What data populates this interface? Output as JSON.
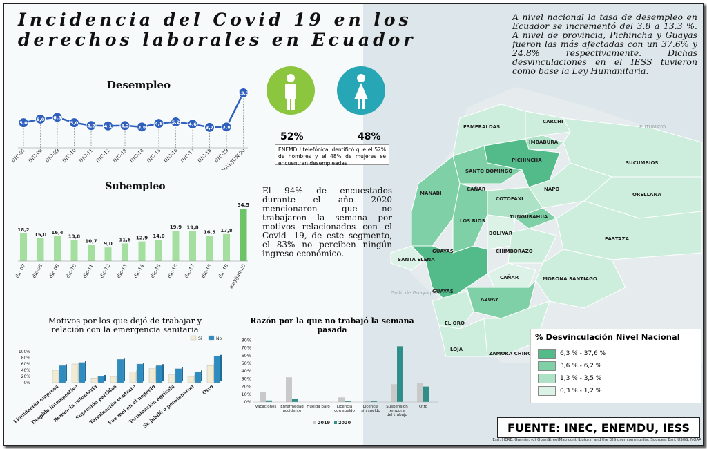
{
  "title_line1": "Incidencia del Covid 19 en los",
  "title_line2": "derechos laborales en Ecuador",
  "desempleo": {
    "title": "Desempleo",
    "chart_data": {
      "type": "line",
      "categories": [
        "DIC-07",
        "DIC-08",
        "DIC-09",
        "DIC-10",
        "DIC-11",
        "DIC-12",
        "DIC-13",
        "DIC-14",
        "DIC-15",
        "DIC-16",
        "DIC-17",
        "DIC-18",
        "DIC-19",
        "MAY/JUN-20"
      ],
      "values": [
        5.0,
        6.0,
        6.5,
        5.0,
        4.2,
        4.1,
        4.2,
        3.8,
        4.8,
        5.2,
        4.6,
        3.7,
        3.8,
        13.3
      ],
      "labels": [
        "5,0",
        "6,0",
        "6,5",
        "5,0",
        "4,2",
        "4,1",
        "4,2",
        "3,8",
        "4,8",
        "5,2",
        "4,6",
        "3,7",
        "3,8",
        "13,3"
      ],
      "color": "#2f5fbd"
    }
  },
  "gender": {
    "male_pct": "52%",
    "female_pct": "48%",
    "male_color": "#8cc63f",
    "female_color": "#27a7b5",
    "note": "ENEMDU telefónica identificó que el 52% de hombres y el 48% de mujeres se encuentran desempleadas"
  },
  "top_text": "A nivel nacional la tasa de desempleo en Ecuador se incrementó del 3.8 a 13.3 %. A nivel de provincia, Pichincha y Guayas fueron las más afectadas con un 37.6% y 24.8% respectivamente. Dichas desvinculaciones en el IESS tuvieron como base la Ley Humanitaria.",
  "subempleo": {
    "title": "Subempleo",
    "chart_data": {
      "type": "bar",
      "categories": [
        "dic-07",
        "dic-08",
        "dic-09",
        "dic-10",
        "dic-11",
        "dic-12",
        "dic-13",
        "dic-14",
        "dic-15",
        "dic-16",
        "dic-17",
        "dic-18",
        "dic-19",
        "may/jun-20"
      ],
      "values": [
        18.2,
        15.0,
        16.4,
        13.8,
        10.7,
        9.0,
        11.6,
        12.9,
        14.0,
        19.9,
        19.8,
        16.5,
        17.8,
        34.5
      ],
      "labels": [
        "18,2",
        "15,0",
        "16,4",
        "13,8",
        "10,7",
        "9,0",
        "11,6",
        "12,9",
        "14,0",
        "19,9",
        "19,8",
        "16,5",
        "17,8",
        "34,5"
      ],
      "color": "#a5dfa0",
      "last_color": "#6cc466"
    }
  },
  "mid_text": "El 94% de encuestados durante el año 2020 mencionaron que no trabajaron la semana por motivos relacionados con el Covid -19, de este segmento, el 83% no perciben ningún ingreso económico.",
  "motivos": {
    "title_line1": "Motivos por los que dejó de trabajar y",
    "title_line2": "relación con la emergencia sanitaria",
    "chart_data": {
      "type": "bar",
      "categories": [
        "Liquidación empresa",
        "Despido intempestivo",
        "Renuncia voluntaria",
        "Supresión partidas",
        "Terminación contrato",
        "Fue mal en el negocio",
        "Terminación agrícola",
        "Se jubiló o pensionaron",
        "Otro"
      ],
      "series": [
        {
          "name": "Si",
          "values": [
            40,
            60,
            15,
            20,
            35,
            45,
            25,
            20,
            55
          ],
          "color": "#f1ebd4"
        },
        {
          "name": "No",
          "values": [
            55,
            65,
            20,
            75,
            60,
            55,
            45,
            35,
            85
          ],
          "color": "#2e8cc0"
        }
      ],
      "y_ticks": [
        "0%",
        "20%",
        "40%",
        "60%",
        "80%",
        "100%"
      ],
      "ylim": [
        0,
        100
      ]
    }
  },
  "razon": {
    "title_line1": "Razón por la que no trabajó la semana",
    "title_line2": "pasada",
    "chart_data": {
      "type": "bar",
      "categories": [
        "Vacaciones",
        "Enfermedad accidente",
        "Huelga paro",
        "Licencia con sueldo",
        "Licencia sin sueldo",
        "Suspensión temporal del trabajo",
        "Otro"
      ],
      "series": [
        {
          "name": "2019",
          "values": [
            13,
            32,
            0,
            6,
            1,
            23,
            25
          ],
          "color": "#c9c9c9"
        },
        {
          "name": "2020",
          "values": [
            2,
            4,
            0,
            1,
            1,
            72,
            20
          ],
          "color": "#2f8f88"
        }
      ],
      "y_ticks": [
        "0%",
        "10%",
        "20%",
        "30%",
        "40%",
        "50%",
        "60%",
        "70%",
        "80%"
      ],
      "ylim": [
        0,
        80
      ]
    }
  },
  "map": {
    "legend_title": "% Desvinculación Nivel Nacional",
    "legend": [
      {
        "label": "6,3 % - 37,6 %",
        "color": "#53bb8a"
      },
      {
        "label": "3,6 % - 6,2 %",
        "color": "#7fd0a6"
      },
      {
        "label": "1,3 % - 3,5 %",
        "color": "#aee2c6"
      },
      {
        "label": "0,3 % - 1,2 %",
        "color": "#ddf2e7"
      }
    ],
    "provinces": [
      "ESMERALDAS",
      "CARCHI",
      "IMBABURA",
      "PICHINCHA",
      "SANTO DOMINGO",
      "SUCUMBIOS",
      "MANABI",
      "CAÑAR",
      "NAPO",
      "ORELLANA",
      "COTOPAXI",
      "LOS RIOS",
      "TUNGURAHUA",
      "BOLIVAR",
      "PASTAZA",
      "GUAYAS",
      "CHIMBORAZO",
      "SANTA ELENA",
      "MORONA SANTIAGO",
      "CAÑAR",
      "GUAYAS",
      "AZUAY",
      "EL ORO",
      "LOJA",
      "ZAMORA CHINCHIPE"
    ],
    "basemap_labels": [
      "PUTUMAYO",
      "Golfo de Guayaquil"
    ]
  },
  "source": "FUENTE:  INEC, ENEMDU, IESS",
  "attribution": "Esri, HERE, Garmin, (c) OpenStreetMap contributors, and the GIS user community; Sources: Esri, USGS, NOAA"
}
